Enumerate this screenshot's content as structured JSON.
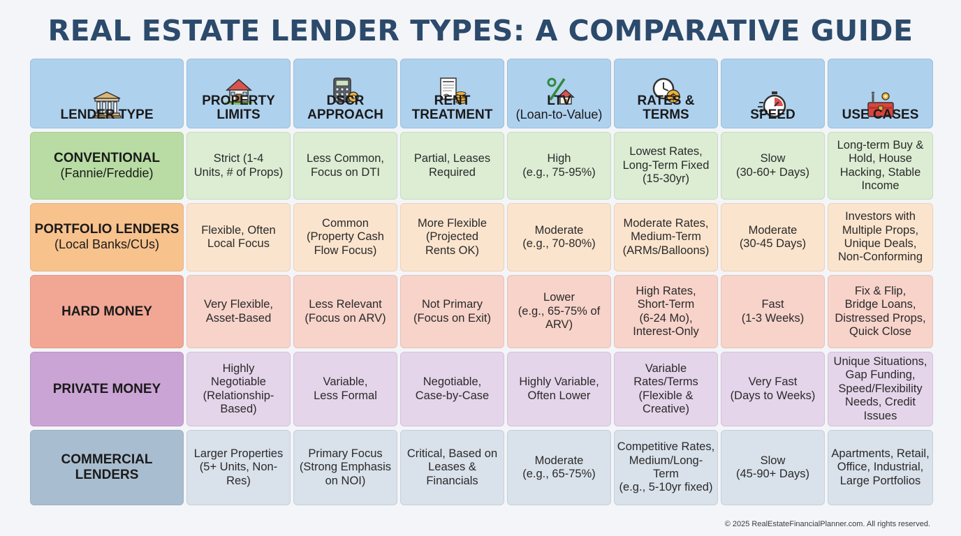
{
  "title": "REAL ESTATE LENDER TYPES: A COMPARATIVE GUIDE",
  "headers": [
    {
      "label": "LENDER TYPE",
      "sub": "",
      "icon": "bank-icon"
    },
    {
      "label": "PROPERTY\nLIMITS",
      "sub": "",
      "icon": "house-icon"
    },
    {
      "label": "DSCR\nAPPROACH",
      "sub": "",
      "icon": "calculator-gear-icon"
    },
    {
      "label": "RENT\nTREATMENT",
      "sub": "",
      "icon": "lease-coins-icon"
    },
    {
      "label": "LTV",
      "sub": "(Loan-to-Value)",
      "icon": "percent-house-icon"
    },
    {
      "label": "RATES &\nTERMS",
      "sub": "",
      "icon": "clock-dollar-icon"
    },
    {
      "label": "SPEED",
      "sub": "",
      "icon": "stopwatch-icon"
    },
    {
      "label": "USE CASES",
      "sub": "",
      "icon": "toolbox-icon"
    }
  ],
  "rows": [
    {
      "name": "CONVENTIONAL",
      "sub": "(Fannie/Freddie)",
      "cells": [
        "Strict (1-4\nUnits, # of Props)",
        "Less Common,\nFocus on DTI",
        "Partial, Leases\nRequired",
        "High\n(e.g., 75-95%)",
        "Lowest Rates,\nLong-Term Fixed\n(15-30yr)",
        "Slow\n(30-60+ Days)",
        "Long-term Buy &\nHold, House\nHacking, Stable\nIncome"
      ]
    },
    {
      "name": "PORTFOLIO LENDERS",
      "sub": "(Local Banks/CUs)",
      "cells": [
        "Flexible, Often\nLocal Focus",
        "Common\n(Property Cash\nFlow Focus)",
        "More Flexible\n(Projected\nRents OK)",
        "Moderate\n(e.g., 70-80%)",
        "Moderate Rates,\nMedium-Term\n(ARMs/Balloons)",
        "Moderate\n(30-45 Days)",
        "Investors with\nMultiple Props,\nUnique Deals,\nNon-Conforming"
      ]
    },
    {
      "name": "HARD MONEY",
      "sub": "",
      "cells": [
        "Very Flexible,\nAsset-Based",
        "Less Relevant\n(Focus on ARV)",
        "Not Primary\n(Focus on Exit)",
        "Lower\n(e.g., 65-75% of\nARV)",
        "High Rates,\nShort-Term\n(6-24 Mo),\nInterest-Only",
        "Fast\n(1-3 Weeks)",
        "Fix & Flip,\nBridge Loans,\nDistressed Props,\nQuick Close"
      ]
    },
    {
      "name": "PRIVATE MONEY",
      "sub": "",
      "cells": [
        "Highly\nNegotiable\n(Relationship-\nBased)",
        "Variable,\nLess Formal",
        "Negotiable,\nCase-by-Case",
        "Highly Variable,\nOften Lower",
        "Variable\nRates/Terms\n(Flexible & Creative)",
        "Very Fast\n(Days to Weeks)",
        "Unique Situations,\nGap Funding,\nSpeed/Flexibility\nNeeds, Credit Issues"
      ]
    },
    {
      "name": "COMMERCIAL\nLENDERS",
      "sub": "",
      "cells": [
        "Larger Properties\n(5+ Units, Non-Res)",
        "Primary Focus\n(Strong Emphasis\non NOI)",
        "Critical, Based on\nLeases &\nFinancials",
        "Moderate\n(e.g., 65-75%)",
        "Competitive Rates,\nMedium/Long-Term\n(e.g., 5-10yr fixed)",
        "Slow\n(45-90+ Days)",
        "Apartments, Retail,\nOffice, Industrial,\nLarge Portfolios"
      ]
    }
  ],
  "row_colors": {
    "conventional": "#b8dca3",
    "portfolio": "#f8c28d",
    "hard_money": "#f1a794",
    "private_money": "#c9a4d4",
    "commercial": "#a9bdd0",
    "header": "#aed1ee",
    "title": "#2c4a6b"
  },
  "footer": "© 2025 RealEstateFinancialPlanner.com. All rights reserved."
}
